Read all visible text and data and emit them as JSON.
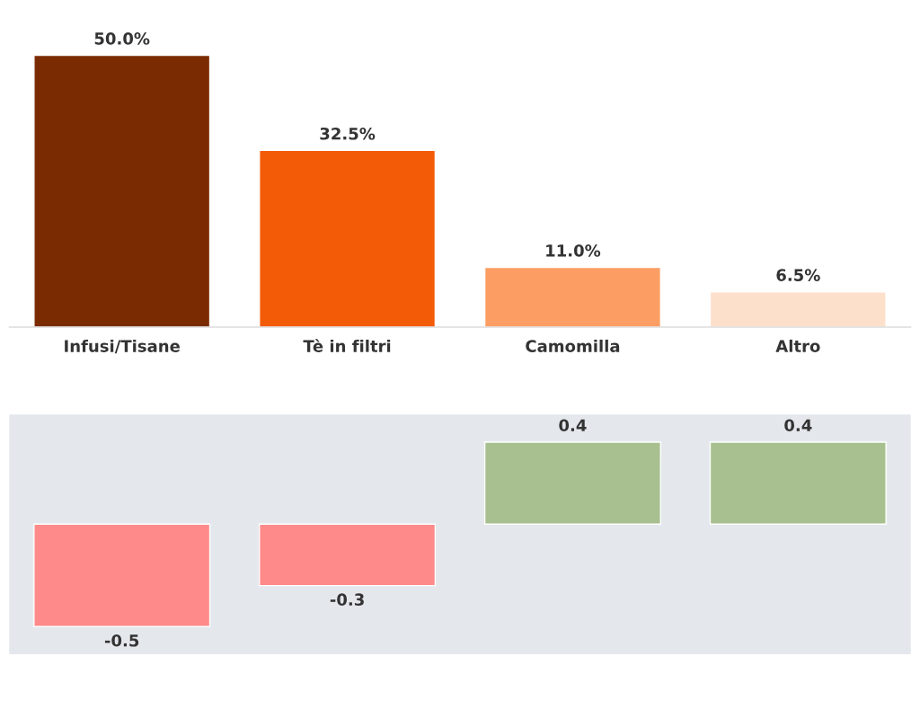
{
  "chart_data": [
    {
      "type": "bar",
      "categories": [
        "Infusi/Tisane",
        "Tè in filtri",
        "Camomilla",
        "Altro"
      ],
      "values": [
        50.0,
        32.5,
        11.0,
        6.5
      ],
      "colors": [
        "#7b2b02",
        "#f45b07",
        "#fc9d63",
        "#fde0cc"
      ],
      "value_labels": [
        "50.0%",
        "32.5%",
        "11.0%",
        "6.5%"
      ]
    },
    {
      "type": "bar",
      "categories": [
        null,
        null,
        null,
        null
      ],
      "values": [
        -0.5,
        -0.3,
        0.4,
        0.4
      ],
      "colors": [
        "#ff8a8a",
        "#ff8a8a",
        "#a8c090",
        "#a8c090"
      ],
      "data_labels": true
    }
  ]
}
